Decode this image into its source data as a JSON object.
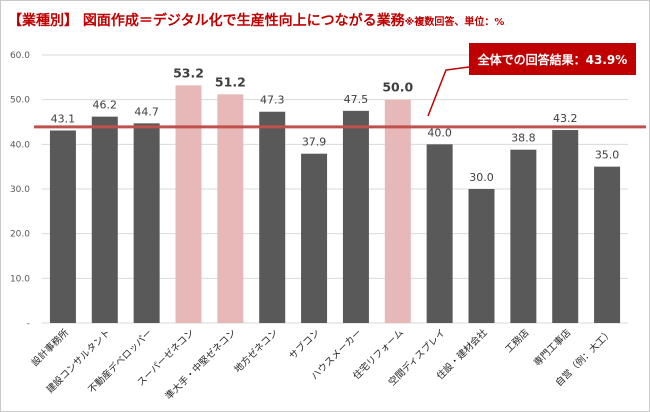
{
  "title": {
    "main": "【業種別】 図面作成＝デジタル化で生産性向上につながる業務",
    "note": "※複数回答、単位：%"
  },
  "callout": {
    "text": "全体での回答結果：43.9%",
    "color": "#c00000"
  },
  "colors": {
    "bar": "#595959",
    "bar_highlight": "#e6b8b7",
    "reference_line": "#c0504d"
  },
  "chart_data": {
    "type": "bar",
    "categories": [
      "設計事務所",
      "建設コンサルタント",
      "不動産デベロッパー",
      "スーパーゼネコン",
      "準大手・中堅ゼネコン",
      "地方ゼネコン",
      "サブコン",
      "ハウスメーカー",
      "住宅リフォーム",
      "空間ディスプレイ",
      "住設・建材会社",
      "工務店",
      "専門工事店",
      "自営（例：大工）"
    ],
    "values": [
      43.1,
      46.2,
      44.7,
      53.2,
      51.2,
      47.3,
      37.9,
      47.5,
      50.0,
      40.0,
      30.0,
      38.8,
      43.2,
      35.0
    ],
    "value_labels": [
      "43.1",
      "46.2",
      "44.7",
      "53.2",
      "51.2",
      "47.3",
      "37.9",
      "47.5",
      "50.0",
      "40.0",
      "30.0",
      "38.8",
      "43.2",
      "35.0"
    ],
    "highlighted": [
      3,
      4,
      8
    ],
    "reference_value": 43.9,
    "ylim": [
      0,
      60
    ],
    "yticks": [
      0,
      10,
      20,
      30,
      40,
      50,
      60
    ],
    "ytick_labels": [
      "-",
      "10.0",
      "20.0",
      "30.0",
      "40.0",
      "50.0",
      "60.0"
    ],
    "grid": true,
    "xlabel": "",
    "ylabel": ""
  }
}
